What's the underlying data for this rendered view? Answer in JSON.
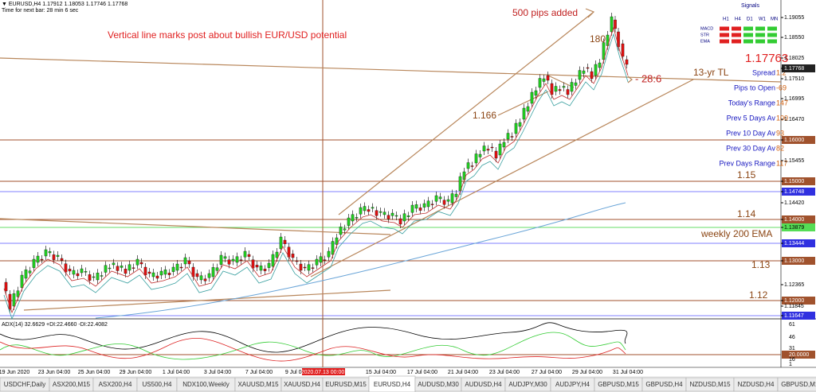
{
  "header": {
    "quote": "▼ EURUSD,H4  1.17912 1.18053 1.17746 1.17768",
    "timer": "Time for next bar: 28 min 6 sec"
  },
  "annotations": [
    "Vertical line marks post about bullish EUR/USD potential",
    "500 pips added",
    "180",
    "1.166",
    "13-yr TL",
    "- 28:6",
    "1.15",
    "1.14",
    "weekly 200 EMA",
    "1.13",
    "1.12"
  ],
  "current_price": "1.17763",
  "signals": {
    "title": "Signals",
    "columns": [
      "H1",
      "H4",
      "D1",
      "W1",
      "MN"
    ],
    "rows": [
      "MACD",
      "STR",
      "EMA"
    ]
  },
  "info": [
    [
      "Spread",
      "1.2"
    ],
    [
      "Pips to Open",
      "-69"
    ],
    [
      "Today's Range",
      "147"
    ],
    [
      "Prev 5 Days Av",
      "100"
    ],
    [
      "Prev 10 Day Av",
      "93"
    ],
    [
      "Prev 30 Day Av",
      "82"
    ],
    [
      "Prev Days Range",
      "117"
    ]
  ],
  "price_axis": [
    "1.19055",
    "1.18550",
    "1.18025",
    "1.17768",
    "1.17510",
    "1.16995",
    "1.16470",
    "1.16000",
    "1.15455",
    "1.15000",
    "1.14748",
    "1.14420",
    "1.14000",
    "1.13879",
    "1.13444",
    "1.13000",
    "1.12365",
    "1.12000",
    "1.11845",
    "1.11647"
  ],
  "indicator": {
    "label": "ADX(14) 32.6629 +DI:22.4660 -DI:22.4082",
    "axis": [
      "61",
      "46",
      "31",
      "20.0000",
      "16",
      "1"
    ]
  },
  "time_axis": [
    "19 Jun 2020",
    "23 Jun 04:00",
    "25 Jun 04:00",
    "29 Jun 04:00",
    "1 Jul 04:00",
    "3 Jul 04:00",
    "7 Jul 04:00",
    "9 Jul 04:00",
    "2020.07.13 00:00",
    "15 Jul 04:00",
    "17 Jul 04:00",
    "21 Jul 04:00",
    "23 Jul 04:00",
    "27 Jul 04:00",
    "29 Jul 04:00",
    "31 Jul 04:00"
  ],
  "tabs": [
    "USDCHF,Daily",
    "ASX200,M15",
    "ASX200,H4",
    "US500,H4",
    "NDX100,Weekly",
    "XAUUSD,M15",
    "XAUUSD,H4",
    "EURUSD,M15",
    "EURUSD,H4",
    "AUDUSD,M30",
    "AUDUSD,H4",
    "AUDJPY,M30",
    "AUDJPY,H4",
    "GBPUSD,M15",
    "GBPUSD,H4",
    "NZDUSD,M15",
    "NZDUSD,H4",
    "GBPUSD,M15"
  ]
}
